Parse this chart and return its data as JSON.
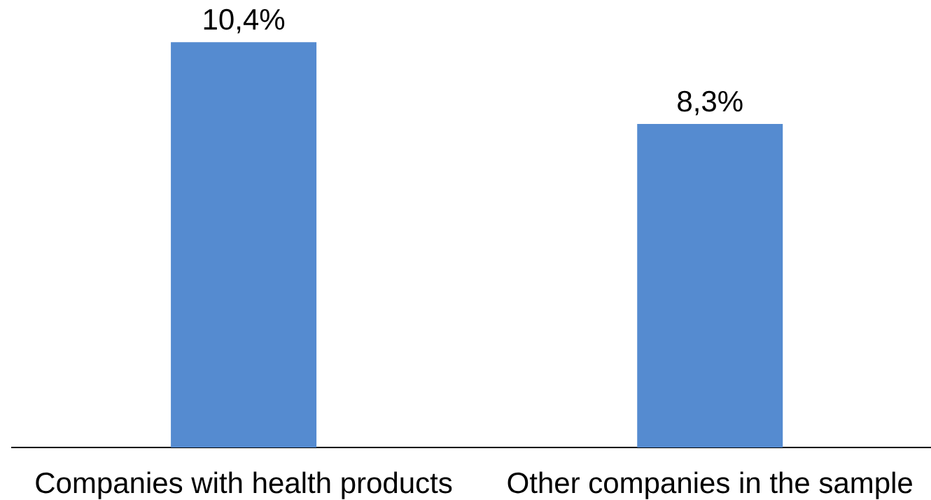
{
  "chart_data": {
    "type": "bar",
    "categories": [
      "Companies with health products",
      "Other companies in the sample"
    ],
    "values": [
      10.4,
      8.3
    ],
    "color": "#558bd0",
    "value_labels": [
      "10,4%",
      "8,3%"
    ]
  }
}
